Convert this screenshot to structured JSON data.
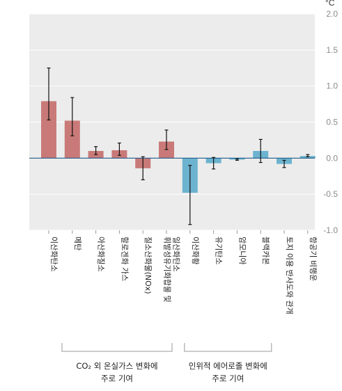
{
  "chart_data": {
    "type": "bar",
    "unit_label": "°C",
    "ylim": [
      -1.0,
      2.0
    ],
    "y_ticks": [
      "2.0",
      "1.5",
      "1.0",
      "0.5",
      "0.0",
      "-0.5",
      "-1.0"
    ],
    "y_tick_values": [
      2.0,
      1.5,
      1.0,
      0.5,
      0.0,
      -0.5,
      -1.0
    ],
    "grid": true,
    "colors": {
      "group1": "#c97a78",
      "group2": "#6cb3cf",
      "background": "#ececec",
      "error": "#111111"
    },
    "categories": [
      [
        "이산화탄소"
      ],
      [
        "메탄"
      ],
      [
        "아산화질소"
      ],
      [
        "할로겐화 가스"
      ],
      [
        "질소산화물(NOx)"
      ],
      [
        "휘발성유기화합물 및",
        "일산화탄소"
      ],
      [
        "이산화황"
      ],
      [
        "유기탄소"
      ],
      [
        "암모니아"
      ],
      [
        "블랙카본"
      ],
      [
        "토지 이용 반사도와 관개"
      ],
      [
        "항공기 비행운"
      ]
    ],
    "values": [
      0.79,
      0.52,
      0.1,
      0.11,
      -0.14,
      0.23,
      -0.48,
      -0.07,
      -0.02,
      0.1,
      -0.08,
      0.03
    ],
    "error_low": [
      0.53,
      0.31,
      0.05,
      0.04,
      -0.3,
      0.12,
      -0.92,
      -0.15,
      -0.03,
      -0.06,
      -0.13,
      0.02
    ],
    "error_high": [
      1.25,
      0.84,
      0.16,
      0.21,
      0.02,
      0.39,
      -0.1,
      0.01,
      -0.01,
      0.26,
      -0.03,
      0.05
    ],
    "groups": [
      {
        "label_lines": [
          "CO₂ 외 온실가스 변화에",
          "주로 기여"
        ],
        "start": 0,
        "end": 5,
        "color_key": "group1"
      },
      {
        "label_lines": [
          "인위적 에어로졸 변화에",
          "주로 기여"
        ],
        "start": 6,
        "end": 11,
        "color_key": "group2"
      }
    ]
  }
}
